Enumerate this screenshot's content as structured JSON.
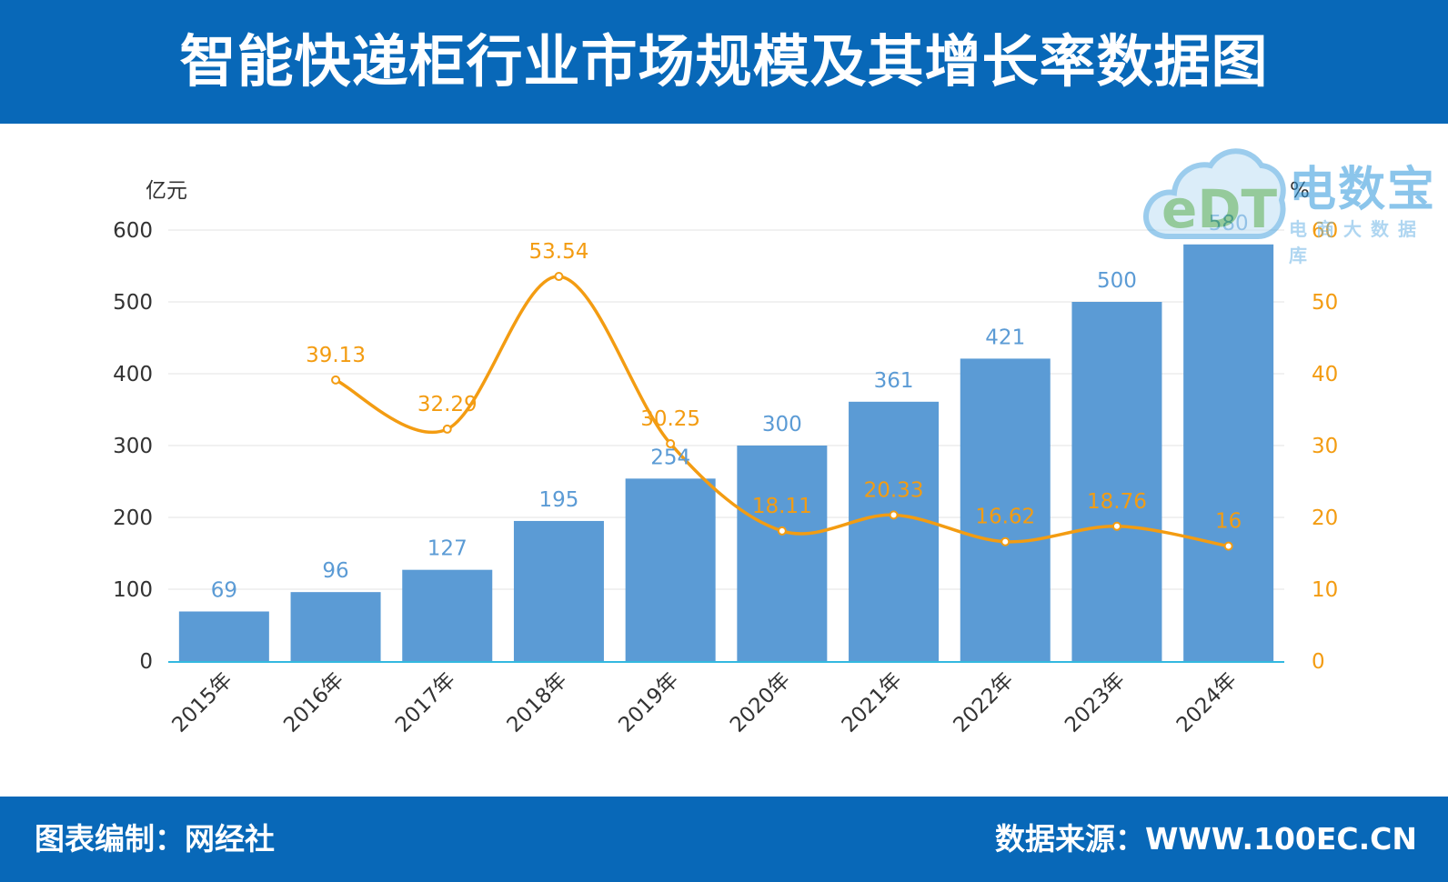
{
  "title": "智能快递柜行业市场规模及其增长率数据图",
  "footer": {
    "left": "图表编制：网经社",
    "right": "数据来源：WWW.100EC.CN"
  },
  "logo": {
    "main": "电数宝",
    "sub": "电商大数据库",
    "mark": "eDT",
    "icon": "cloud-logo-icon"
  },
  "colors": {
    "header": "#0868b8",
    "bar": "#5b9bd5",
    "line": "#f39c12",
    "axis": "#33b8e0"
  },
  "chart_data": {
    "type": "bar",
    "categories": [
      "2015年",
      "2016年",
      "2017年",
      "2018年",
      "2019年",
      "2020年",
      "2021年",
      "2022年",
      "2023年",
      "2024年"
    ],
    "series": [
      {
        "type": "bar",
        "axis": "left",
        "values": [
          69,
          96,
          127,
          195,
          254,
          300,
          361,
          421,
          500,
          580
        ]
      },
      {
        "type": "line",
        "axis": "right",
        "values": [
          null,
          39.13,
          32.29,
          53.54,
          30.25,
          18.11,
          20.33,
          16.62,
          18.76,
          16
        ]
      }
    ],
    "bar_labels": [
      "69",
      "96",
      "127",
      "195",
      "254",
      "300",
      "361",
      "421",
      "500",
      "580"
    ],
    "line_labels": [
      "",
      "39.13",
      "32.29",
      "53.54",
      "30.25",
      "18.11",
      "20.33",
      "16.62",
      "18.76",
      "16"
    ],
    "y_left": {
      "unit": "亿元",
      "ticks": [
        "0",
        "100",
        "200",
        "300",
        "400",
        "500",
        "600"
      ],
      "range": [
        0,
        600
      ]
    },
    "y_right": {
      "unit": "%",
      "ticks": [
        "0",
        "10",
        "20",
        "30",
        "40",
        "50",
        "60"
      ],
      "range": [
        0,
        60
      ]
    },
    "grid": true
  }
}
